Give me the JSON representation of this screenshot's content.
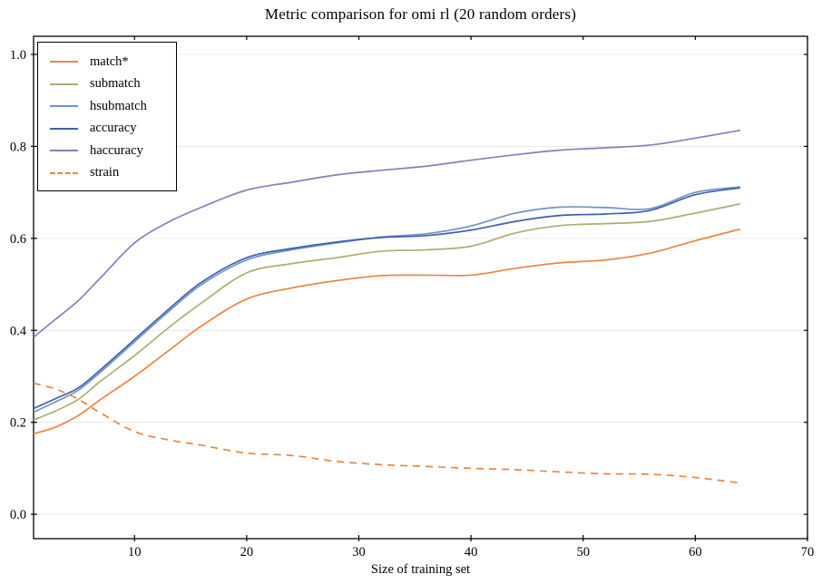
{
  "chart_data": {
    "type": "line",
    "title": "Metric comparison for omi rl (20 random orders)",
    "xlabel": "Size of training set",
    "ylabel": "",
    "xlim": [
      1,
      70
    ],
    "ylim": [
      -0.053,
      1.0395
    ],
    "grid": true,
    "grid_color": "#e9e9e9",
    "spine_color": "#000000",
    "background_color": "#ffffff",
    "legend_position": "upper left",
    "xticks": [
      10,
      20,
      30,
      40,
      50,
      60,
      70
    ],
    "xtick_labels": [
      "10",
      "20",
      "30",
      "40",
      "50",
      "60",
      "70"
    ],
    "yticks": [
      0.0,
      0.2,
      0.4,
      0.6,
      0.8,
      1.0
    ],
    "ytick_labels": [
      "0.0",
      "0.2",
      "0.4",
      "0.6",
      "0.8",
      "1.0"
    ],
    "x": [
      1,
      3,
      5,
      7,
      10,
      13,
      16,
      20,
      24,
      28,
      32,
      36,
      40,
      44,
      48,
      52,
      56,
      60,
      64
    ],
    "series": [
      {
        "name": "match*",
        "color": "#ed853f",
        "dash": null,
        "y": [
          0.175,
          0.19,
          0.215,
          0.25,
          0.3,
          0.355,
          0.41,
          0.468,
          0.492,
          0.508,
          0.519,
          0.52,
          0.52,
          0.535,
          0.547,
          0.553,
          0.568,
          0.595,
          0.62
        ]
      },
      {
        "name": "submatch",
        "color": "#a4b271",
        "dash": null,
        "y": [
          0.205,
          0.225,
          0.25,
          0.29,
          0.345,
          0.405,
          0.46,
          0.525,
          0.545,
          0.558,
          0.572,
          0.575,
          0.583,
          0.612,
          0.628,
          0.632,
          0.637,
          0.655,
          0.675
        ]
      },
      {
        "name": "hsubmatch",
        "color": "#6e94c8",
        "dash": null,
        "y": [
          0.222,
          0.245,
          0.27,
          0.31,
          0.375,
          0.44,
          0.5,
          0.553,
          0.575,
          0.59,
          0.603,
          0.61,
          0.627,
          0.655,
          0.668,
          0.667,
          0.665,
          0.7,
          0.712
        ]
      },
      {
        "name": "accuracy",
        "color": "#3e5fb1",
        "dash": null,
        "y": [
          0.23,
          0.252,
          0.275,
          0.315,
          0.38,
          0.445,
          0.505,
          0.558,
          0.578,
          0.592,
          0.602,
          0.606,
          0.618,
          0.637,
          0.65,
          0.653,
          0.661,
          0.695,
          0.71
        ]
      },
      {
        "name": "haccuracy",
        "color": "#8280bd",
        "dash": null,
        "y": [
          0.385,
          0.425,
          0.465,
          0.515,
          0.59,
          0.635,
          0.668,
          0.705,
          0.722,
          0.738,
          0.748,
          0.757,
          0.77,
          0.782,
          0.792,
          0.797,
          0.803,
          0.818,
          0.835
        ]
      },
      {
        "name": "strain",
        "color": "#ed853f",
        "dash": "8,6",
        "y": [
          0.285,
          0.272,
          0.25,
          0.22,
          0.18,
          0.162,
          0.15,
          0.133,
          0.128,
          0.115,
          0.108,
          0.104,
          0.1,
          0.097,
          0.092,
          0.088,
          0.087,
          0.08,
          0.068
        ]
      }
    ]
  }
}
